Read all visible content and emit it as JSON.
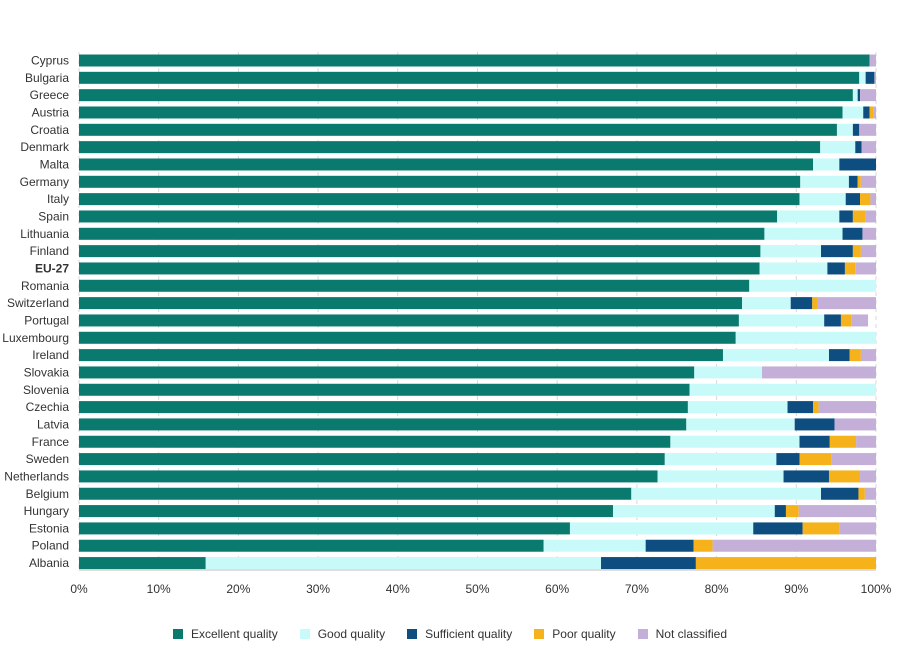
{
  "chart_data": {
    "type": "bar",
    "orientation": "horizontal",
    "stacked": true,
    "categories": [
      "Cyprus",
      "Bulgaria",
      "Greece",
      "Austria",
      "Croatia",
      "Denmark",
      "Malta",
      "Germany",
      "Italy",
      "Spain",
      "Lithuania",
      "Finland",
      "EU-27",
      "Romania",
      "Switzerland",
      "Portugal",
      "Luxembourg",
      "Ireland",
      "Slovakia",
      "Slovenia",
      "Czechia",
      "Latvia",
      "France",
      "Sweden",
      "Netherlands",
      "Belgium",
      "Hungary",
      "Estonia",
      "Poland",
      "Albania"
    ],
    "highlighted_category": "EU-27",
    "series": [
      {
        "name": "Excellent quality",
        "color": "#0b7a6e",
        "values": [
          99.2,
          97.9,
          97.1,
          95.8,
          95.1,
          93.0,
          92.1,
          90.5,
          90.4,
          87.6,
          86.0,
          85.5,
          85.4,
          84.1,
          83.2,
          82.8,
          82.4,
          80.8,
          77.2,
          76.6,
          76.4,
          76.2,
          74.2,
          73.5,
          72.6,
          69.3,
          67.0,
          61.6,
          58.3,
          15.9
        ]
      },
      {
        "name": "Good quality",
        "color": "#c8fafa",
        "values": [
          0.0,
          0.8,
          0.6,
          2.6,
          2.0,
          4.4,
          3.3,
          6.1,
          5.8,
          7.8,
          9.8,
          7.6,
          8.5,
          15.9,
          6.1,
          10.7,
          17.6,
          13.3,
          8.5,
          23.4,
          12.5,
          13.6,
          16.2,
          14.0,
          15.8,
          23.8,
          20.3,
          23.0,
          12.8,
          49.6
        ]
      },
      {
        "name": "Sufficient quality",
        "color": "#0d4d80",
        "values": [
          0.0,
          1.1,
          0.3,
          0.8,
          0.8,
          0.8,
          4.6,
          1.1,
          1.8,
          1.7,
          2.5,
          4.0,
          2.2,
          0.0,
          2.7,
          2.1,
          0.0,
          2.6,
          0.0,
          0.0,
          3.2,
          5.0,
          3.8,
          2.9,
          5.7,
          4.7,
          1.4,
          6.2,
          6.0,
          11.9
        ]
      },
      {
        "name": "Poor quality",
        "color": "#f5b21a",
        "values": [
          0.0,
          0.0,
          0.0,
          0.5,
          0.0,
          0.0,
          0.0,
          0.4,
          1.3,
          1.6,
          0.0,
          1.0,
          1.3,
          0.0,
          0.6,
          1.3,
          0.0,
          1.4,
          0.0,
          0.0,
          0.7,
          0.0,
          3.3,
          4.0,
          3.9,
          0.8,
          1.6,
          4.6,
          2.4,
          22.6
        ]
      },
      {
        "name": "Not classified",
        "color": "#c3afd7",
        "values": [
          0.8,
          0.2,
          2.0,
          0.3,
          2.1,
          1.8,
          0.0,
          1.9,
          0.7,
          1.3,
          1.7,
          1.9,
          2.6,
          0.0,
          7.4,
          2.1,
          0.0,
          1.9,
          14.3,
          0.0,
          7.2,
          5.2,
          2.5,
          5.6,
          2.0,
          1.4,
          9.7,
          4.6,
          20.5,
          0.0
        ]
      }
    ],
    "x_ticks": [
      "0%",
      "10%",
      "20%",
      "30%",
      "40%",
      "50%",
      "60%",
      "70%",
      "80%",
      "90%",
      "100%"
    ],
    "xlim": [
      0,
      100
    ],
    "grid": "vertical dashed",
    "legend_position": "bottom"
  }
}
